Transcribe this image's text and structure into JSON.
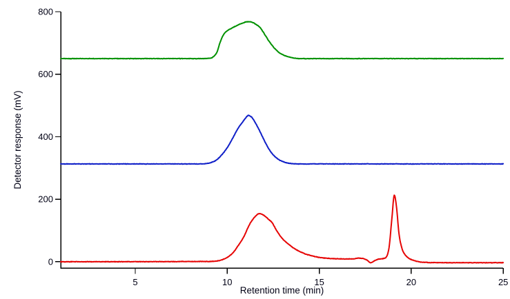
{
  "figure": {
    "background_color": "#ffffff",
    "axis_color": "#000000",
    "text_color": "#000014"
  },
  "chart_data": {
    "type": "line",
    "title": "",
    "xlabel": "Retention time (min)",
    "ylabel": "Detector response (mV)",
    "xlim": [
      0.95,
      25
    ],
    "ylim": [
      -20,
      800
    ],
    "x_ticks": [
      5,
      10,
      15,
      20,
      25
    ],
    "y_ticks": [
      0,
      200,
      400,
      600,
      800
    ],
    "grid": false,
    "legend": "none",
    "noise_mv": 1.0,
    "series": [
      {
        "name": "green-chromatogram",
        "color": "#009100",
        "line_width": 2,
        "baseline_mv": 650,
        "description": "broad peak, apex ~768 mV at ~11.1 min, leading shoulder near 9.8 min, returns to baseline by ~14 min",
        "points": [
          [
            0.95,
            650
          ],
          [
            8.6,
            650
          ],
          [
            9.0,
            651
          ],
          [
            9.2,
            654
          ],
          [
            9.45,
            672
          ],
          [
            9.6,
            700
          ],
          [
            9.8,
            727
          ],
          [
            10.0,
            739
          ],
          [
            10.3,
            749
          ],
          [
            10.6,
            758
          ],
          [
            10.9,
            765
          ],
          [
            11.1,
            768
          ],
          [
            11.3,
            767
          ],
          [
            11.55,
            760
          ],
          [
            11.8,
            748
          ],
          [
            12.05,
            726
          ],
          [
            12.3,
            703
          ],
          [
            12.6,
            681
          ],
          [
            12.9,
            666
          ],
          [
            13.2,
            658
          ],
          [
            13.6,
            652
          ],
          [
            14.0,
            650
          ],
          [
            25,
            650
          ]
        ]
      },
      {
        "name": "blue-chromatogram",
        "color": "#1020c8",
        "line_width": 2,
        "baseline_mv": 313,
        "description": "symmetric peak with slight tailing, apex ~468 mV at ~11.15 min",
        "points": [
          [
            0.95,
            313
          ],
          [
            8.4,
            313
          ],
          [
            8.8,
            314
          ],
          [
            9.1,
            317
          ],
          [
            9.4,
            325
          ],
          [
            9.7,
            342
          ],
          [
            10.0,
            365
          ],
          [
            10.3,
            396
          ],
          [
            10.6,
            428
          ],
          [
            10.85,
            448
          ],
          [
            11.0,
            460
          ],
          [
            11.15,
            468
          ],
          [
            11.35,
            461
          ],
          [
            11.6,
            437
          ],
          [
            11.85,
            408
          ],
          [
            12.1,
            378
          ],
          [
            12.35,
            353
          ],
          [
            12.6,
            336
          ],
          [
            12.85,
            325
          ],
          [
            13.1,
            319
          ],
          [
            13.5,
            314
          ],
          [
            14.0,
            313
          ],
          [
            25,
            313
          ]
        ]
      },
      {
        "name": "red-chromatogram",
        "color": "#e60505",
        "line_width": 2,
        "baseline_mv": 0,
        "description": "broad tailing peak ~154 mV at ~11.75 min, small hump ~17.15 min, dip below baseline ~17.8 min, sharp peak ~213 mV at ~19.1 min",
        "points": [
          [
            0.95,
            0
          ],
          [
            9.0,
            1
          ],
          [
            9.4,
            2
          ],
          [
            9.7,
            6
          ],
          [
            10.0,
            14
          ],
          [
            10.3,
            28
          ],
          [
            10.6,
            52
          ],
          [
            10.9,
            80
          ],
          [
            11.2,
            118
          ],
          [
            11.45,
            140
          ],
          [
            11.75,
            154
          ],
          [
            12.0,
            148
          ],
          [
            12.2,
            138
          ],
          [
            12.45,
            124
          ],
          [
            12.7,
            98
          ],
          [
            13.0,
            74
          ],
          [
            13.3,
            58
          ],
          [
            13.6,
            44
          ],
          [
            13.9,
            34
          ],
          [
            14.2,
            26
          ],
          [
            14.6,
            19
          ],
          [
            15.0,
            14
          ],
          [
            15.5,
            11
          ],
          [
            16.0,
            9.5
          ],
          [
            16.5,
            9
          ],
          [
            16.9,
            9.5
          ],
          [
            17.15,
            11.5
          ],
          [
            17.4,
            10
          ],
          [
            17.6,
            5
          ],
          [
            17.8,
            -3
          ],
          [
            18.0,
            3
          ],
          [
            18.2,
            8
          ],
          [
            18.45,
            10
          ],
          [
            18.65,
            16
          ],
          [
            18.8,
            48
          ],
          [
            18.95,
            140
          ],
          [
            19.08,
            213
          ],
          [
            19.2,
            175
          ],
          [
            19.33,
            92
          ],
          [
            19.5,
            42
          ],
          [
            19.65,
            24
          ],
          [
            19.85,
            12
          ],
          [
            20.1,
            5
          ],
          [
            20.4,
            0
          ],
          [
            20.8,
            -2
          ],
          [
            21.5,
            -3
          ],
          [
            25,
            -3
          ]
        ]
      }
    ]
  }
}
